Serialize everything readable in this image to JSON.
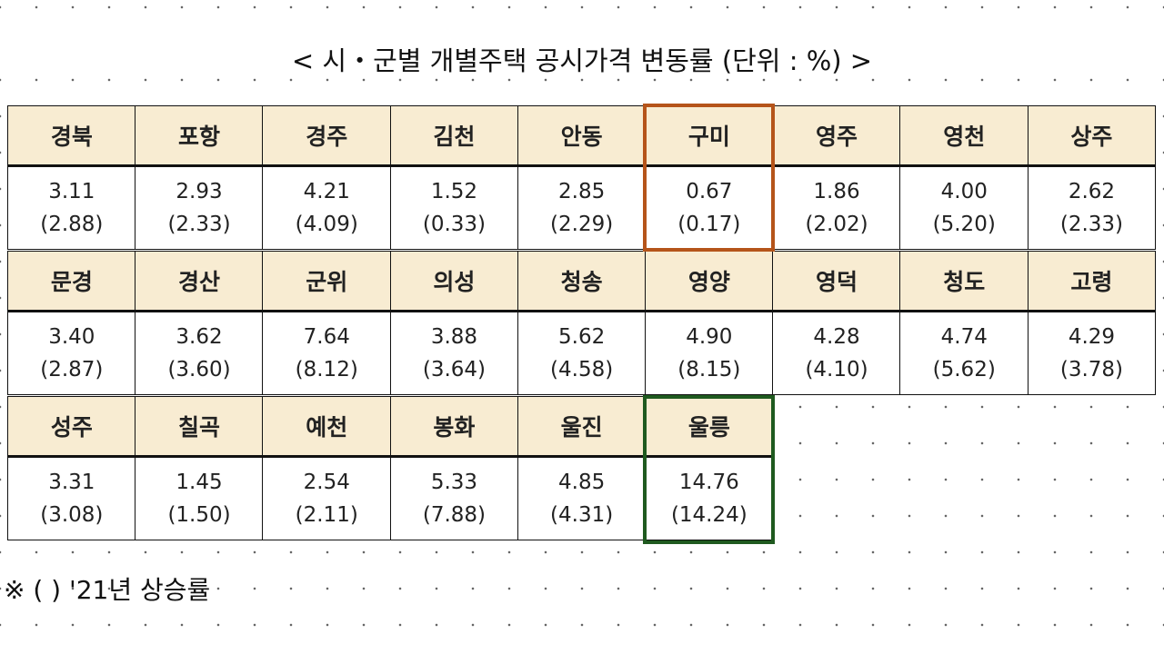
{
  "title": "< 시・군별 개별주택 공시가격 변동률 (단위 : %) >",
  "blocks": [
    [
      {
        "name": "경북",
        "value": "3.11",
        "prev": "(2.88)"
      },
      {
        "name": "포항",
        "value": "2.93",
        "prev": "(2.33)"
      },
      {
        "name": "경주",
        "value": "4.21",
        "prev": "(4.09)"
      },
      {
        "name": "김천",
        "value": "1.52",
        "prev": "(0.33)"
      },
      {
        "name": "안동",
        "value": "2.85",
        "prev": "(2.29)"
      },
      {
        "name": "구미",
        "value": "0.67",
        "prev": "(0.17)"
      },
      {
        "name": "영주",
        "value": "1.86",
        "prev": "(2.02)"
      },
      {
        "name": "영천",
        "value": "4.00",
        "prev": "(5.20)"
      },
      {
        "name": "상주",
        "value": "2.62",
        "prev": "(2.33)"
      }
    ],
    [
      {
        "name": "문경",
        "value": "3.40",
        "prev": "(2.87)"
      },
      {
        "name": "경산",
        "value": "3.62",
        "prev": "(3.60)"
      },
      {
        "name": "군위",
        "value": "7.64",
        "prev": "(8.12)"
      },
      {
        "name": "의성",
        "value": "3.88",
        "prev": "(3.64)"
      },
      {
        "name": "청송",
        "value": "5.62",
        "prev": "(4.58)"
      },
      {
        "name": "영양",
        "value": "4.90",
        "prev": "(8.15)"
      },
      {
        "name": "영덕",
        "value": "4.28",
        "prev": "(4.10)"
      },
      {
        "name": "청도",
        "value": "4.74",
        "prev": "(5.62)"
      },
      {
        "name": "고령",
        "value": "4.29",
        "prev": "(3.78)"
      }
    ],
    [
      {
        "name": "성주",
        "value": "3.31",
        "prev": "(3.08)"
      },
      {
        "name": "칠곡",
        "value": "1.45",
        "prev": "(1.50)"
      },
      {
        "name": "예천",
        "value": "2.54",
        "prev": "(2.11)"
      },
      {
        "name": "봉화",
        "value": "5.33",
        "prev": "(7.88)"
      },
      {
        "name": "울진",
        "value": "4.85",
        "prev": "(4.31)"
      },
      {
        "name": "울릉",
        "value": "14.76",
        "prev": "(14.24)"
      }
    ]
  ],
  "footnote": "※ ( ) '21년 상승률"
}
